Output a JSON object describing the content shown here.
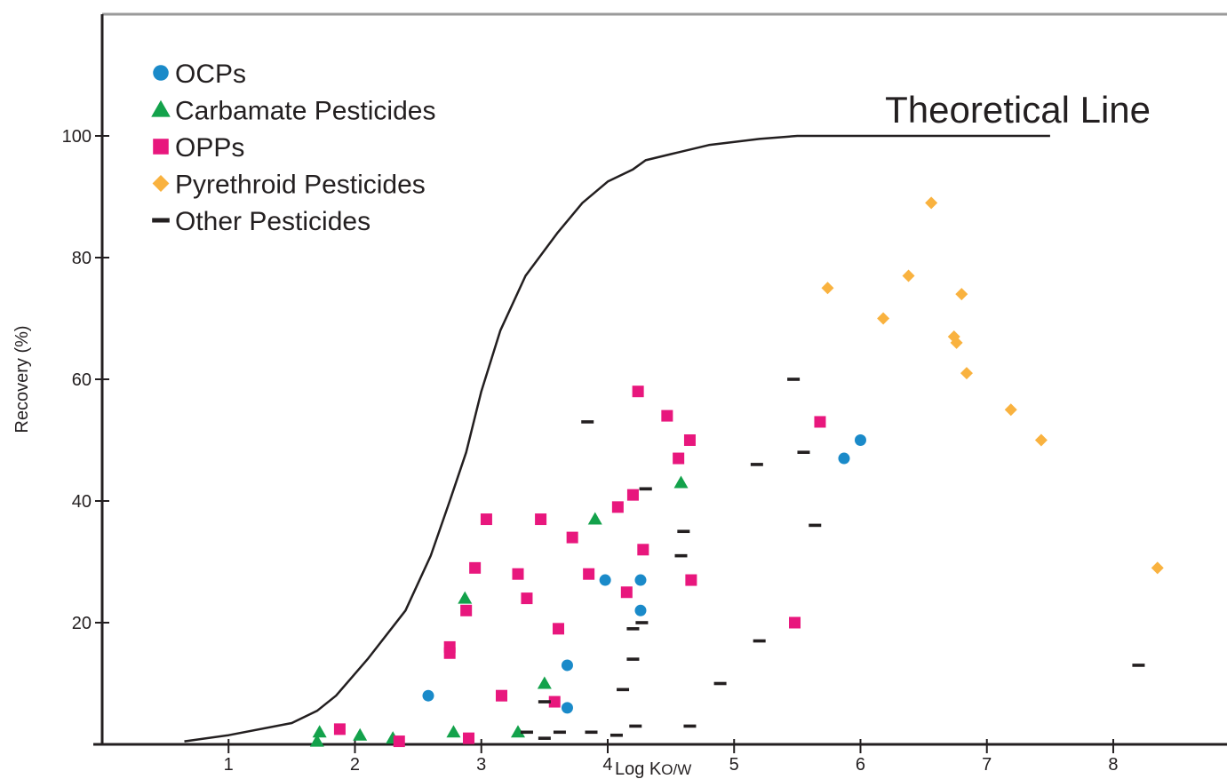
{
  "chart_data": {
    "type": "scatter",
    "xlabel_main": "Log K",
    "xlabel_sub": "O/W",
    "ylabel": "Recovery (%)",
    "xlim": [
      0,
      8.9
    ],
    "ylim": [
      0,
      120
    ],
    "x_ticks": [
      1,
      2,
      3,
      4,
      5,
      6,
      7,
      8
    ],
    "y_ticks": [
      20,
      40,
      60,
      80,
      100
    ],
    "legend_position": "top-left",
    "annotation": "Theoretical Line",
    "colors": {
      "OCPs": "#1a8ac9",
      "Carbamate Pesticides": "#13a24b",
      "OPPs": "#e8177d",
      "Pyrethroid Pesticides": "#f9b23f",
      "Other Pesticides": "#231f20",
      "axis": "#231f20",
      "frame": "#9a9a9a"
    },
    "theoretical_line": {
      "x": [
        0.65,
        1.0,
        1.5,
        1.7,
        1.85,
        2.1,
        2.4,
        2.6,
        2.75,
        2.88,
        3.0,
        3.15,
        3.35,
        3.6,
        3.8,
        4.0,
        4.2,
        4.3,
        4.5,
        4.8,
        5.2,
        5.5,
        5.7,
        7.5
      ],
      "y": [
        0.5,
        1.5,
        3.5,
        5.5,
        8,
        14,
        22,
        31,
        40,
        48,
        58,
        68,
        77,
        84,
        89,
        92.5,
        94.5,
        96,
        97,
        98.5,
        99.5,
        100,
        100,
        100
      ]
    },
    "series": [
      {
        "name": "OCPs",
        "marker": "circle",
        "x": [
          2.58,
          3.68,
          3.68,
          3.98,
          4.26,
          4.26,
          5.87,
          6.0
        ],
        "y": [
          8,
          13,
          6,
          27,
          27,
          22,
          47,
          50
        ]
      },
      {
        "name": "Carbamate Pesticides",
        "marker": "triangle",
        "x": [
          1.7,
          1.72,
          2.04,
          2.3,
          2.78,
          2.87,
          3.29,
          3.5,
          3.9,
          4.58
        ],
        "y": [
          0.5,
          2,
          1.5,
          1,
          2,
          24,
          2,
          10,
          37,
          43
        ]
      },
      {
        "name": "OPPs",
        "marker": "square",
        "x": [
          1.88,
          2.35,
          2.75,
          2.75,
          2.88,
          2.9,
          2.95,
          3.04,
          3.16,
          3.29,
          3.36,
          3.47,
          3.58,
          3.61,
          3.72,
          3.85,
          4.08,
          4.15,
          4.2,
          4.24,
          4.28,
          4.47,
          4.56,
          4.65,
          4.66,
          5.48,
          5.68
        ],
        "y": [
          2.5,
          0.5,
          16,
          15,
          22,
          1,
          29,
          37,
          8,
          28,
          24,
          37,
          7,
          19,
          34,
          28,
          39,
          25,
          41,
          58,
          32,
          54,
          47,
          50,
          27,
          20,
          53
        ]
      },
      {
        "name": "Pyrethroid Pesticides",
        "marker": "diamond",
        "x": [
          5.74,
          6.18,
          6.38,
          6.56,
          6.74,
          6.76,
          6.8,
          6.84,
          7.19,
          7.43,
          8.35
        ],
        "y": [
          75,
          70,
          77,
          89,
          67,
          66,
          74,
          61,
          55,
          50,
          29
        ]
      },
      {
        "name": "Other Pesticides",
        "marker": "dash",
        "x": [
          3.36,
          3.5,
          3.5,
          3.62,
          3.84,
          3.87,
          4.07,
          4.12,
          4.2,
          4.2,
          4.22,
          4.27,
          4.3,
          4.3,
          4.58,
          4.6,
          4.65,
          4.89,
          5.18,
          5.2,
          5.47,
          5.55,
          5.64,
          8.2
        ],
        "y": [
          2,
          1,
          7,
          2,
          53,
          2,
          1.5,
          9,
          19,
          14,
          3,
          20,
          42,
          42,
          31,
          35,
          3,
          10,
          46,
          17,
          60,
          48,
          36,
          13
        ]
      }
    ]
  }
}
